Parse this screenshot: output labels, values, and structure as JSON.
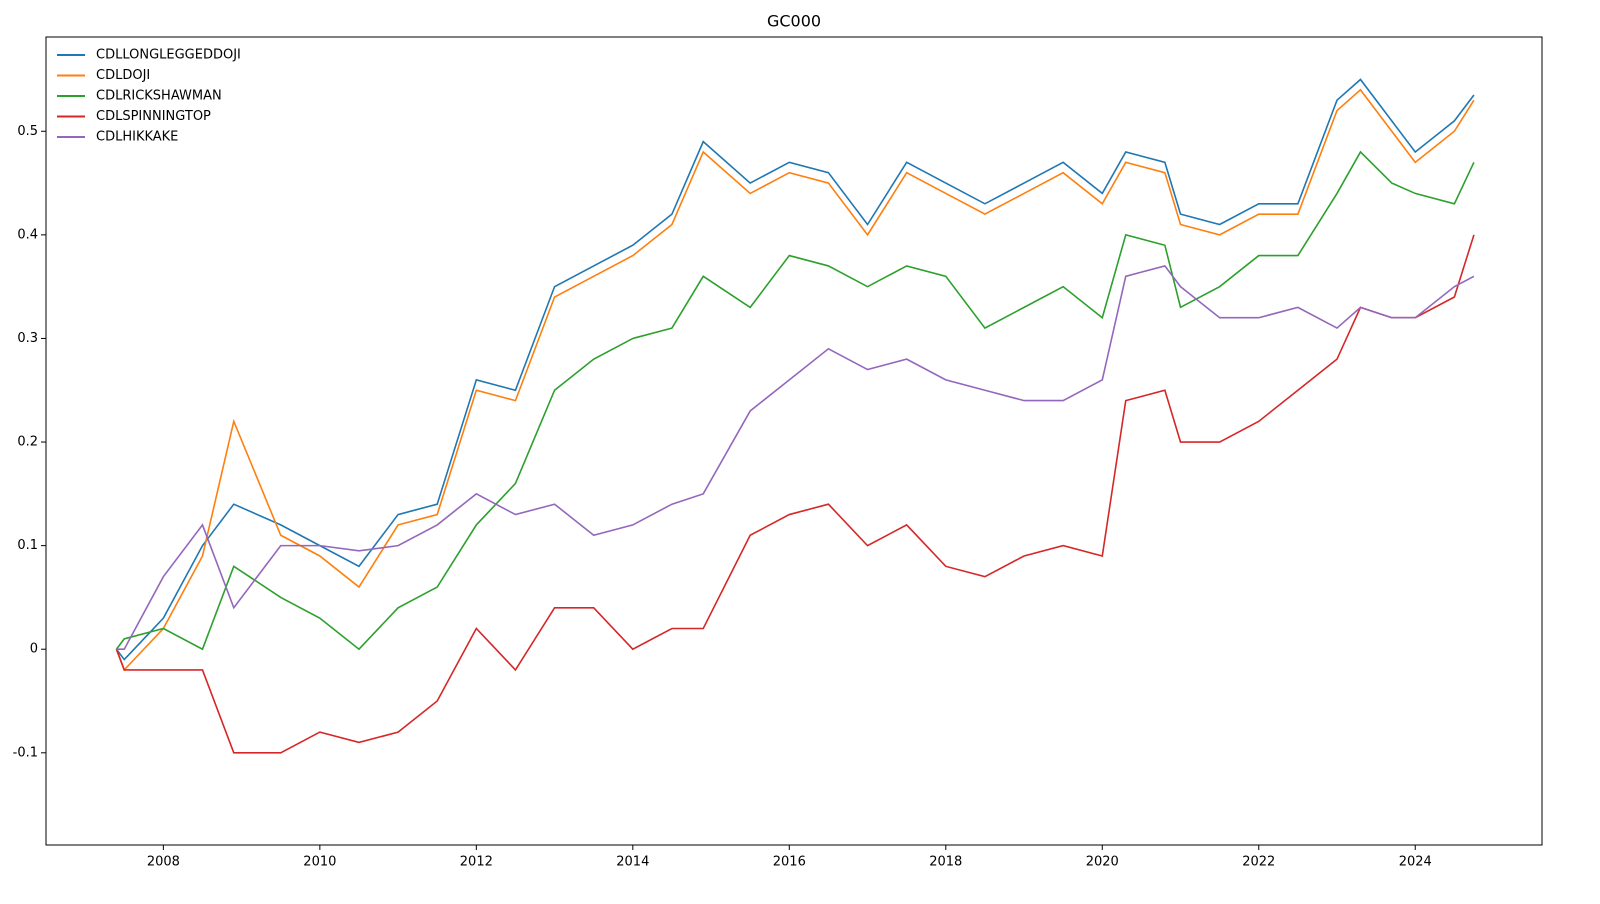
{
  "chart_data": {
    "type": "line",
    "title": "GC000",
    "x": [
      2007.4,
      2007.5,
      2008,
      2008.5,
      2008.9,
      2009.5,
      2010.0,
      2010.5,
      2011,
      2011.5,
      2012,
      2012.5,
      2013,
      2013.5,
      2014,
      2014.5,
      2014.9,
      2015.5,
      2016,
      2016.5,
      2017,
      2017.5,
      2018,
      2018.5,
      2019,
      2019.5,
      2020,
      2020.3,
      2020.8,
      2021,
      2021.5,
      2022,
      2022.5,
      2023,
      2023.3,
      2023.7,
      2024,
      2024.5,
      2024.75
    ],
    "series": [
      {
        "name": "CDLLONGLEGGEDDOJI",
        "color": "#1f77b4",
        "values": [
          0,
          -0.01,
          0.03,
          0.1,
          0.14,
          0.12,
          0.1,
          0.08,
          0.13,
          0.14,
          0.26,
          0.25,
          0.35,
          0.37,
          0.39,
          0.42,
          0.49,
          0.45,
          0.47,
          0.46,
          0.41,
          0.47,
          0.45,
          0.43,
          0.45,
          0.47,
          0.44,
          0.48,
          0.47,
          0.42,
          0.41,
          0.43,
          0.43,
          0.53,
          0.55,
          0.51,
          0.48,
          0.51,
          0.535
        ]
      },
      {
        "name": "CDLDOJI",
        "color": "#ff7f0e",
        "values": [
          0,
          -0.02,
          0.02,
          0.09,
          0.22,
          0.11,
          0.09,
          0.06,
          0.12,
          0.13,
          0.25,
          0.24,
          0.34,
          0.36,
          0.38,
          0.41,
          0.48,
          0.44,
          0.46,
          0.45,
          0.4,
          0.46,
          0.44,
          0.42,
          0.44,
          0.46,
          0.43,
          0.47,
          0.46,
          0.41,
          0.4,
          0.42,
          0.42,
          0.52,
          0.54,
          0.5,
          0.47,
          0.5,
          0.53
        ]
      },
      {
        "name": "CDLRICKSHAWMAN",
        "color": "#2ca02c",
        "values": [
          0,
          0.01,
          0.02,
          0.0,
          0.08,
          0.05,
          0.03,
          0.0,
          0.04,
          0.06,
          0.12,
          0.16,
          0.25,
          0.28,
          0.3,
          0.31,
          0.36,
          0.33,
          0.38,
          0.37,
          0.35,
          0.37,
          0.36,
          0.31,
          0.33,
          0.35,
          0.32,
          0.4,
          0.39,
          0.33,
          0.35,
          0.38,
          0.38,
          0.44,
          0.48,
          0.45,
          0.44,
          0.43,
          0.47
        ]
      },
      {
        "name": "CDLSPINNINGTOP",
        "color": "#d62728",
        "values": [
          0,
          -0.02,
          -0.02,
          -0.02,
          -0.1,
          -0.1,
          -0.08,
          -0.09,
          -0.08,
          -0.05,
          0.02,
          -0.02,
          0.04,
          0.04,
          0.0,
          0.02,
          0.02,
          0.11,
          0.13,
          0.14,
          0.1,
          0.12,
          0.08,
          0.07,
          0.09,
          0.1,
          0.09,
          0.24,
          0.25,
          0.2,
          0.2,
          0.22,
          0.25,
          0.28,
          0.33,
          0.32,
          0.32,
          0.34,
          0.4
        ]
      },
      {
        "name": "CDLHIKKAKE",
        "color": "#9467bd",
        "values": [
          0,
          0.0,
          0.07,
          0.12,
          0.04,
          0.1,
          0.1,
          0.095,
          0.1,
          0.12,
          0.15,
          0.13,
          0.14,
          0.11,
          0.12,
          0.14,
          0.15,
          0.23,
          0.26,
          0.29,
          0.27,
          0.28,
          0.26,
          0.25,
          0.24,
          0.24,
          0.26,
          0.36,
          0.37,
          0.35,
          0.32,
          0.32,
          0.33,
          0.31,
          0.33,
          0.32,
          0.32,
          0.35,
          0.36
        ]
      }
    ],
    "xlim": [
      2006.5,
      2025.62
    ],
    "xticks": [
      2008,
      2010,
      2012,
      2014,
      2016,
      2018,
      2020,
      2022,
      2024
    ],
    "ylim": [
      -0.189,
      0.591
    ],
    "yticks": [
      -0.1,
      0.0,
      0.1,
      0.2,
      0.3,
      0.4,
      0.5
    ],
    "legend": "upper left"
  }
}
